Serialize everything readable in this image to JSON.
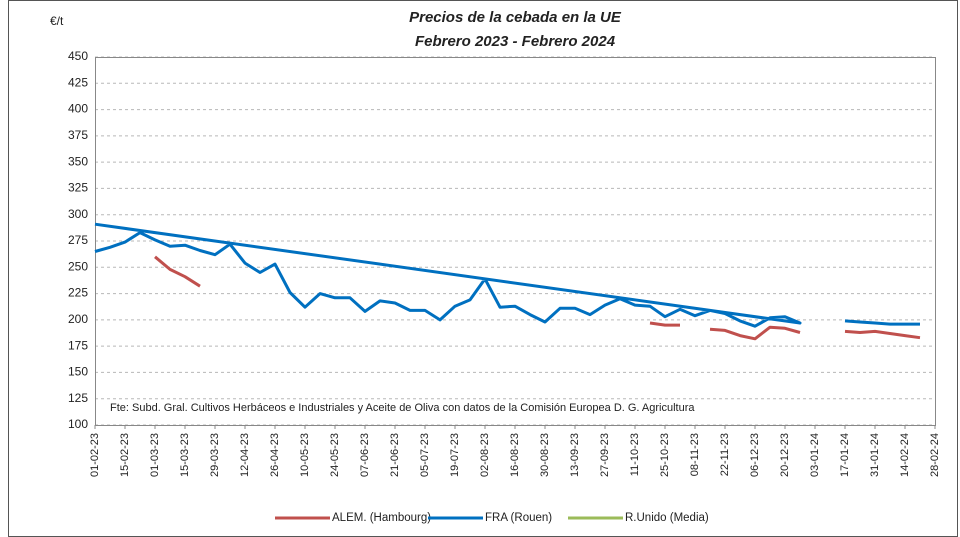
{
  "chart_data": {
    "type": "line",
    "title": "Precios de la cebada en la UE",
    "subtitle": "Febrero 2023 - Febrero 2024",
    "y_label": "€/t",
    "annotation": "Fte: Subd. Gral. Cultivos Herbáceos e Industriales y Aceite de Oliva con datos de la Comisión Europea D. G. Agricultura",
    "xlim": [
      "2023-02-01",
      "2024-02-28"
    ],
    "xticks": [
      {
        "value": "2023-02-01",
        "label": "01-02-23"
      },
      {
        "value": "2023-02-15",
        "label": "15-02-23"
      },
      {
        "value": "2023-03-01",
        "label": "01-03-23"
      },
      {
        "value": "2023-03-15",
        "label": "15-03-23"
      },
      {
        "value": "2023-03-29",
        "label": "29-03-23"
      },
      {
        "value": "2023-04-12",
        "label": "12-04-23"
      },
      {
        "value": "2023-04-26",
        "label": "26-04-23"
      },
      {
        "value": "2023-05-10",
        "label": "10-05-23"
      },
      {
        "value": "2023-05-24",
        "label": "24-05-23"
      },
      {
        "value": "2023-06-07",
        "label": "07-06-23"
      },
      {
        "value": "2023-06-21",
        "label": "21-06-23"
      },
      {
        "value": "2023-07-05",
        "label": "05-07-23"
      },
      {
        "value": "2023-07-19",
        "label": "19-07-23"
      },
      {
        "value": "2023-08-02",
        "label": "02-08-23"
      },
      {
        "value": "2023-08-16",
        "label": "16-08-23"
      },
      {
        "value": "2023-08-30",
        "label": "30-08-23"
      },
      {
        "value": "2023-09-13",
        "label": "13-09-23"
      },
      {
        "value": "2023-09-27",
        "label": "27-09-23"
      },
      {
        "value": "2023-10-11",
        "label": "11-10-23"
      },
      {
        "value": "2023-10-25",
        "label": "25-10-23"
      },
      {
        "value": "2023-11-08",
        "label": "08-11-23"
      },
      {
        "value": "2023-11-22",
        "label": "22-11-23"
      },
      {
        "value": "2023-12-06",
        "label": "06-12-23"
      },
      {
        "value": "2023-12-20",
        "label": "20-12-23"
      },
      {
        "value": "2024-01-03",
        "label": "03-01-24"
      },
      {
        "value": "2024-01-17",
        "label": "17-01-24"
      },
      {
        "value": "2024-01-31",
        "label": "31-01-24"
      },
      {
        "value": "2024-02-14",
        "label": "14-02-24"
      },
      {
        "value": "2024-02-28",
        "label": "28-02-24"
      }
    ],
    "ylim": [
      100,
      450
    ],
    "yticks": [
      100,
      125,
      150,
      175,
      200,
      225,
      250,
      275,
      300,
      325,
      350,
      375,
      400,
      425,
      450
    ],
    "grid": true,
    "legend": "bottom",
    "series": [
      {
        "name": "ALEM. (Hambourg)",
        "color": "#c0504d",
        "x": [
          "2023-03-01",
          "2023-03-08",
          "2023-03-15",
          "2023-03-22",
          "2023-03-29",
          "2023-10-18",
          "2023-10-25",
          "2023-11-01",
          "2023-11-08",
          "2023-11-15",
          "2023-11-22",
          "2023-11-29",
          "2023-12-06",
          "2023-12-13",
          "2023-12-20",
          "2023-12-27",
          "2024-01-03",
          "2024-01-17",
          "2024-01-24",
          "2024-01-31",
          "2024-02-07",
          "2024-02-14",
          "2024-02-21"
        ],
        "values": [
          260,
          248,
          241,
          232,
          null,
          197,
          195,
          195,
          null,
          191,
          190,
          185,
          182,
          193,
          192,
          188,
          null,
          189,
          188,
          189,
          187,
          185,
          183
        ]
      },
      {
        "name": "FRA (Rouen)",
        "color": "#0070c0",
        "x": [
          "2023-02-01",
          "2023-02-08",
          "2023-02-15",
          "2023-02-22",
          "2023-03-01",
          "2023-03-08",
          "2023-03-15",
          "2023-03-22",
          "2023-03-29",
          "2023-04-05",
          "2023-04-12",
          "2023-04-19",
          "2023-04-26",
          "2023-05-03",
          "2023-05-10",
          "2023-05-17",
          "2023-05-24",
          "2023-05-31",
          "2023-06-07",
          "2023-06-14",
          "2023-06-21",
          "2023-06-28",
          "2023-07-05",
          "2023-07-12",
          "2023-07-19",
          "2023-07-26",
          "2023-08-02",
          "2023-08-09",
          "2023-08-16",
          "2023-08-23",
          "2023-08-30",
          "2023-09-06",
          "2023-09-13",
          "2023-09-20",
          "2023-09-27",
          "2023-10-04",
          "2023-10-11",
          "2023-10-18",
          "2023-10-25",
          "2023-11-01",
          "2023-11-08",
          "2023-11-15",
          "2023-11-22",
          "2023-11-29",
          "2023-12-06",
          "2023-12-13",
          "2023-12-20",
          "2023-12-27",
          "2023-02-01",
          "2024-01-10",
          "2024-01-17",
          "2024-01-24",
          "2024-01-31",
          "2024-02-07",
          "2024-02-14",
          "2024-02-21"
        ],
        "values": [
          265,
          269,
          274,
          283,
          276,
          270,
          271,
          266,
          262,
          272,
          254,
          245,
          253,
          226,
          212,
          225,
          221,
          221,
          208,
          218,
          216,
          209,
          209,
          200,
          213,
          219,
          239,
          212,
          213,
          205,
          198,
          211,
          211,
          205,
          214,
          220,
          214,
          213,
          203,
          210,
          204,
          209,
          206,
          199,
          194,
          202,
          203,
          197,
          291,
          null,
          199,
          198,
          197,
          196,
          196,
          196
        ]
      },
      {
        "name": "R.Unido (Media)",
        "color": "#9bbb59",
        "x": [],
        "values": []
      }
    ]
  }
}
